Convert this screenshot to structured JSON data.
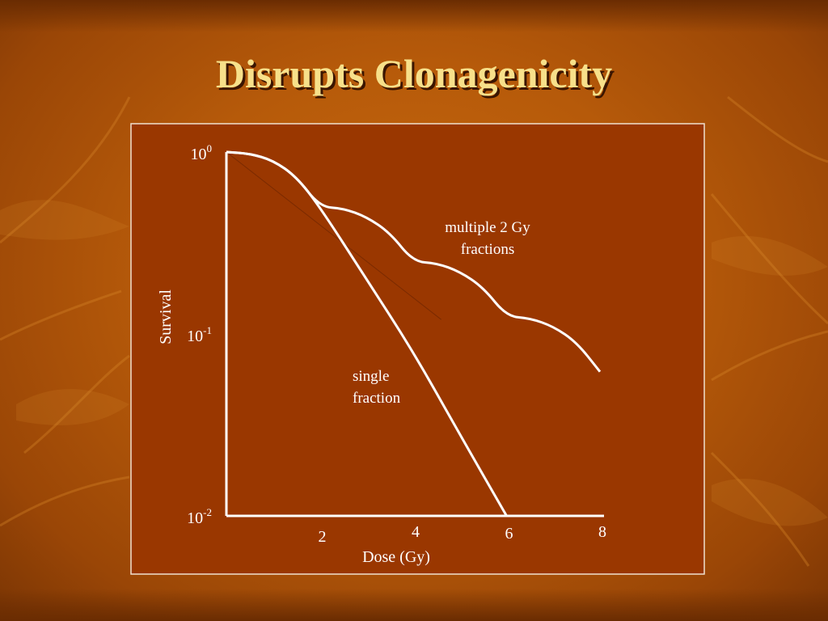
{
  "slide": {
    "title": "Disrupts Clonagenicity",
    "colors": {
      "background": "#b65a0a",
      "panel": "#9a3700",
      "title": "#f7e08a",
      "curve": "#ffffff"
    }
  },
  "chart_data": {
    "type": "line",
    "title": "",
    "xlabel": "Dose (Gy)",
    "ylabel": "Survival",
    "xlim": [
      0,
      8
    ],
    "ylim": [
      0.01,
      1
    ],
    "yscale": "log",
    "grid": false,
    "x_ticks": [
      {
        "value": 2,
        "label": "2"
      },
      {
        "value": 4,
        "label": "4"
      },
      {
        "value": 6,
        "label": "6"
      },
      {
        "value": 8,
        "label": "8"
      }
    ],
    "y_ticks": [
      {
        "value": 1,
        "base": "10",
        "exp": "0"
      },
      {
        "value": 0.1,
        "base": "10",
        "exp": "-1"
      },
      {
        "value": 0.01,
        "base": "10",
        "exp": "-2"
      }
    ],
    "series": [
      {
        "label": [
          "single",
          "fraction"
        ],
        "x": [
          0,
          0.5,
          1,
          1.5,
          2,
          3,
          4,
          5,
          6
        ],
        "y": [
          1,
          0.98,
          0.9,
          0.73,
          0.5,
          0.2,
          0.08,
          0.028,
          0.01
        ]
      },
      {
        "label": [
          "multiple 2 Gy",
          "fractions"
        ],
        "x": [
          0,
          0.5,
          1,
          1.5,
          2,
          2.5,
          3,
          3.5,
          4,
          4.5,
          5,
          5.5,
          6,
          6.5,
          7,
          7.5,
          8
        ],
        "y": [
          1,
          0.98,
          0.9,
          0.73,
          0.5,
          0.49,
          0.44,
          0.36,
          0.25,
          0.245,
          0.22,
          0.18,
          0.125,
          0.122,
          0.11,
          0.09,
          0.062
        ]
      }
    ]
  }
}
